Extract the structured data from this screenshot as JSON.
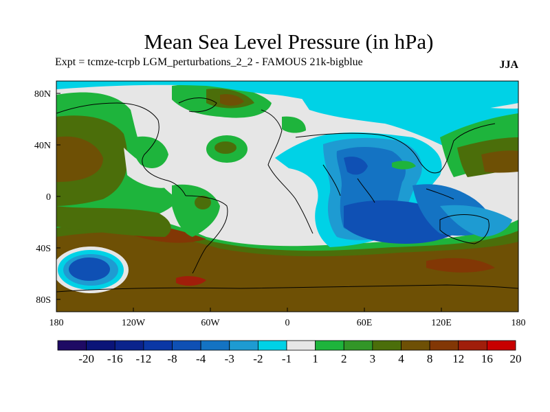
{
  "header": {
    "title": "Mean Sea Level Pressure (in hPa)",
    "subtitle": "Expt = tcmze-tcrpb    LGM_perturbations_2_2 - FAMOUS 21k-bigblue",
    "season": "JJA"
  },
  "axes": {
    "x_ticks": [
      "180",
      "120W",
      "60W",
      "0",
      "60E",
      "120E",
      "180"
    ],
    "y_ticks": [
      "80N",
      "40N",
      "0",
      "40S",
      "80S"
    ]
  },
  "colorbar": {
    "labels": [
      "-20",
      "-16",
      "-12",
      "-8",
      "-4",
      "-3",
      "-2",
      "-1",
      "1",
      "2",
      "3",
      "4",
      "8",
      "12",
      "16",
      "20"
    ],
    "colors": [
      "#1e0a64",
      "#0a1478",
      "#0a238c",
      "#0a37a5",
      "#0f50b4",
      "#1473c3",
      "#1e9bd2",
      "#00d2e6",
      "#e6e6e6",
      "#1eb43c",
      "#329628",
      "#4b6e0a",
      "#6e5005",
      "#823705",
      "#a01e0a",
      "#c80000"
    ]
  },
  "map_regions": [
    {
      "name": "global-background",
      "level": "-1 to 1",
      "color": "#e6e6e6"
    },
    {
      "name": "southern-ocean-high",
      "level": "4 to 8",
      "color": "#6e5005"
    },
    {
      "name": "south-pacific-low",
      "level": "-8 to -4",
      "color": "#0f50b4"
    },
    {
      "name": "indian-ocean-asia-low",
      "level": "-4 to -3",
      "color": "#1473c3"
    },
    {
      "name": "north-pacific-high",
      "level": "3 to 4",
      "color": "#4b6e0a"
    },
    {
      "name": "arctic-low",
      "level": "-2 to -1",
      "color": "#00d2e6"
    }
  ]
}
